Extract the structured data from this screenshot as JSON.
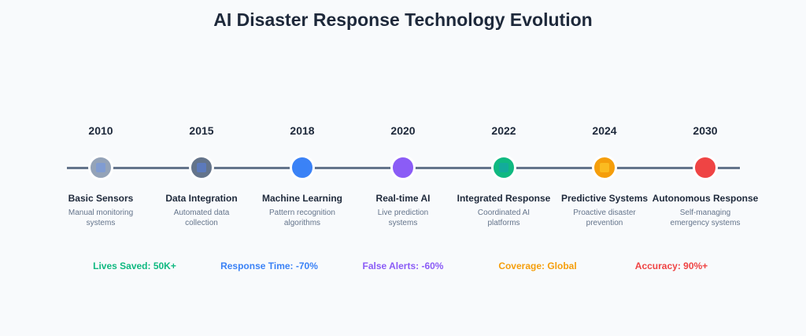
{
  "title": "AI Disaster Response Technology Evolution",
  "milestones": [
    {
      "year": "2010",
      "title": "Basic Sensors",
      "desc_line1": "Manual monitoring",
      "desc_line2": "systems",
      "color": "#94a3b8",
      "inner": "#7c9bd6"
    },
    {
      "year": "2015",
      "title": "Data Integration",
      "desc_line1": "Automated data",
      "desc_line2": "collection",
      "color": "#64748b",
      "inner": "#5b7bc4"
    },
    {
      "year": "2018",
      "title": "Machine Learning",
      "desc_line1": "Pattern recognition",
      "desc_line2": "algorithms",
      "color": "#3b82f6",
      "inner": "#3b82f6"
    },
    {
      "year": "2020",
      "title": "Real-time AI",
      "desc_line1": "Live prediction",
      "desc_line2": "systems",
      "color": "#8b5cf6",
      "inner": "#8b5cf6"
    },
    {
      "year": "2022",
      "title": "Integrated Response",
      "desc_line1": "Coordinated AI",
      "desc_line2": "platforms",
      "color": "#10b981",
      "inner": "#14a8a0"
    },
    {
      "year": "2024",
      "title": "Predictive Systems",
      "desc_line1": "Proactive disaster",
      "desc_line2": "prevention",
      "color": "#f59e0b",
      "inner": "#fbbf24"
    },
    {
      "year": "2030",
      "title": "Autonomous Response",
      "desc_line1": "Self-managing",
      "desc_line2": "emergency systems",
      "color": "#ef4444",
      "inner": "#ef4444"
    }
  ],
  "metrics": [
    {
      "label": "Lives Saved: 50K+",
      "color": "#10b981"
    },
    {
      "label": "Response Time: -70%",
      "color": "#3b82f6"
    },
    {
      "label": "False Alerts: -60%",
      "color": "#8b5cf6"
    },
    {
      "label": "Coverage: Global",
      "color": "#f59e0b"
    },
    {
      "label": "Accuracy: 90%+",
      "color": "#ef4444"
    }
  ]
}
